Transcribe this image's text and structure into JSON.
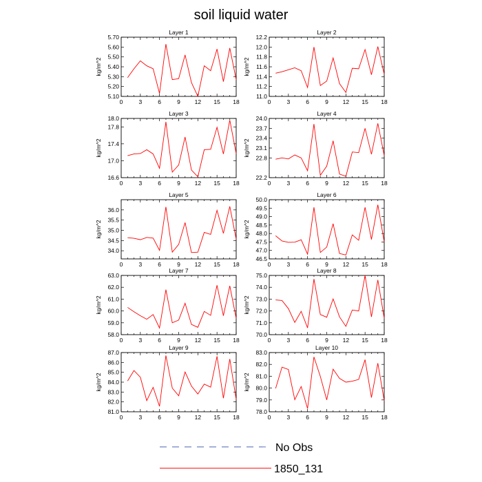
{
  "title": "soil liquid water",
  "colors": {
    "series": "#ff0000",
    "obs": "#4a5fb0"
  },
  "legend": [
    {
      "label": "No Obs",
      "style": "dashed",
      "color": "#4a5fb0"
    },
    {
      "label": "1850_131",
      "style": "solid",
      "color": "#ff0000"
    }
  ],
  "chart_data": [
    {
      "type": "line",
      "title": "Layer 1",
      "ylabel": "kg/m^2",
      "xlim": [
        0,
        18
      ],
      "xticks": [
        0,
        3,
        6,
        9,
        12,
        15,
        18
      ],
      "ylim": [
        5.1,
        5.7
      ],
      "yticks": [
        "5.10",
        "5.20",
        "5.30",
        "5.40",
        "5.50",
        "5.60",
        "5.70"
      ],
      "x": [
        1,
        2,
        3,
        4,
        5,
        6,
        7,
        8,
        9,
        10,
        11,
        12,
        13,
        14,
        15,
        16,
        17,
        18
      ],
      "series": [
        {
          "values": [
            5.29,
            5.38,
            5.46,
            5.41,
            5.38,
            5.13,
            5.63,
            5.27,
            5.28,
            5.52,
            5.24,
            5.1,
            5.41,
            5.36,
            5.58,
            5.25,
            5.59,
            5.27
          ]
        }
      ]
    },
    {
      "type": "line",
      "title": "Layer 2",
      "ylabel": "kg/m^2",
      "xlim": [
        0,
        18
      ],
      "xticks": [
        0,
        3,
        6,
        9,
        12,
        15,
        18
      ],
      "ylim": [
        11.0,
        12.2
      ],
      "yticks": [
        "11.0",
        "11.2",
        "11.4",
        "11.6",
        "11.8",
        "12.0",
        "12.2"
      ],
      "x": [
        1,
        2,
        3,
        4,
        5,
        6,
        7,
        8,
        9,
        10,
        11,
        12,
        13,
        14,
        15,
        16,
        17,
        18
      ],
      "series": [
        {
          "values": [
            11.47,
            11.5,
            11.54,
            11.58,
            11.52,
            11.18,
            12.0,
            11.22,
            11.31,
            11.78,
            11.26,
            11.08,
            11.57,
            11.56,
            11.95,
            11.44,
            12.01,
            11.45
          ]
        }
      ]
    },
    {
      "type": "line",
      "title": "Layer 3",
      "ylabel": "kg/m^2",
      "xlim": [
        0,
        18
      ],
      "xticks": [
        0,
        3,
        6,
        9,
        12,
        15,
        18
      ],
      "ylim": [
        16.6,
        18.0
      ],
      "yticks": [
        "16.6",
        "17.0",
        "17.4",
        "17.8",
        "18.0"
      ],
      "x": [
        1,
        2,
        3,
        4,
        5,
        6,
        7,
        8,
        9,
        10,
        11,
        12,
        13,
        14,
        15,
        16,
        17,
        18
      ],
      "series": [
        {
          "values": [
            17.12,
            17.16,
            17.17,
            17.26,
            17.16,
            16.82,
            17.92,
            16.73,
            16.9,
            17.56,
            16.78,
            16.62,
            17.26,
            17.27,
            17.79,
            17.16,
            17.96,
            17.17
          ]
        }
      ]
    },
    {
      "type": "line",
      "title": "Layer 4",
      "ylabel": "kg/m^2",
      "xlim": [
        0,
        18
      ],
      "xticks": [
        0,
        3,
        6,
        9,
        12,
        15,
        18
      ],
      "ylim": [
        22.2,
        24.0
      ],
      "yticks": [
        "22.2",
        "22.8",
        "23.1",
        "23.4",
        "23.7",
        "24.0"
      ],
      "x": [
        1,
        2,
        3,
        4,
        5,
        6,
        7,
        8,
        9,
        10,
        11,
        12,
        13,
        14,
        15,
        16,
        17,
        18
      ],
      "series": [
        {
          "values": [
            22.76,
            22.8,
            22.77,
            22.89,
            22.8,
            22.41,
            23.83,
            22.27,
            22.55,
            23.32,
            22.31,
            22.24,
            22.98,
            22.96,
            23.7,
            22.91,
            23.85,
            22.87
          ]
        }
      ]
    },
    {
      "type": "line",
      "title": "Layer 5",
      "ylabel": "kg/m^2",
      "xlim": [
        0,
        18
      ],
      "xticks": [
        0,
        3,
        6,
        9,
        12,
        15,
        18
      ],
      "ylim": [
        33.6,
        36.5
      ],
      "yticks": [
        "34.0",
        "34.5",
        "35.0",
        "35.5",
        "36.0"
      ],
      "x": [
        1,
        2,
        3,
        4,
        5,
        6,
        7,
        8,
        9,
        10,
        11,
        12,
        13,
        14,
        15,
        16,
        17,
        18
      ],
      "series": [
        {
          "values": [
            34.64,
            34.61,
            34.54,
            34.65,
            34.62,
            34.02,
            36.15,
            33.93,
            34.31,
            35.38,
            33.91,
            33.93,
            34.9,
            34.8,
            35.98,
            34.85,
            36.17,
            34.57
          ]
        }
      ]
    },
    {
      "type": "line",
      "title": "Layer 6",
      "ylabel": "kg/m^2",
      "xlim": [
        0,
        18
      ],
      "xticks": [
        0,
        3,
        6,
        9,
        12,
        15,
        18
      ],
      "ylim": [
        46.5,
        50.0
      ],
      "yticks": [
        "46.5",
        "47.0",
        "47.5",
        "48.0",
        "48.5",
        "49.0",
        "49.5",
        "50.0"
      ],
      "x": [
        1,
        2,
        3,
        4,
        5,
        6,
        7,
        8,
        9,
        10,
        11,
        12,
        13,
        14,
        15,
        16,
        17,
        18
      ],
      "series": [
        {
          "values": [
            47.87,
            47.56,
            47.48,
            47.49,
            47.63,
            46.78,
            49.55,
            46.88,
            47.2,
            48.58,
            46.82,
            46.73,
            47.92,
            47.6,
            49.55,
            47.65,
            49.7,
            47.5
          ]
        }
      ]
    },
    {
      "type": "line",
      "title": "Layer 7",
      "ylabel": "kg/m^2",
      "xlim": [
        0,
        18
      ],
      "xticks": [
        0,
        3,
        6,
        9,
        12,
        15,
        18
      ],
      "ylim": [
        58.0,
        63.0
      ],
      "yticks": [
        "58.0",
        "59.0",
        "60.0",
        "61.0",
        "62.0",
        "63.0"
      ],
      "x": [
        1,
        2,
        3,
        4,
        5,
        6,
        7,
        8,
        9,
        10,
        11,
        12,
        13,
        14,
        15,
        16,
        17,
        18
      ],
      "series": [
        {
          "values": [
            60.3,
            59.93,
            59.6,
            59.3,
            59.7,
            58.56,
            61.8,
            59.0,
            59.23,
            60.65,
            58.86,
            58.62,
            59.96,
            59.63,
            62.17,
            59.6,
            62.12,
            59.38
          ]
        }
      ]
    },
    {
      "type": "line",
      "title": "Layer 8",
      "ylabel": "kg/m^2",
      "xlim": [
        0,
        18
      ],
      "xticks": [
        0,
        3,
        6,
        9,
        12,
        15,
        18
      ],
      "ylim": [
        70.0,
        75.0
      ],
      "yticks": [
        "70.0",
        "71.0",
        "72.0",
        "73.0",
        "74.0",
        "75.0"
      ],
      "x": [
        1,
        2,
        3,
        4,
        5,
        6,
        7,
        8,
        9,
        10,
        11,
        12,
        13,
        14,
        15,
        16,
        17,
        18
      ],
      "series": [
        {
          "values": [
            72.93,
            72.88,
            72.2,
            71.03,
            71.97,
            70.57,
            74.7,
            71.7,
            71.47,
            73.02,
            71.5,
            70.7,
            72.08,
            72.0,
            75.0,
            71.5,
            74.62,
            71.38
          ]
        }
      ]
    },
    {
      "type": "line",
      "title": "Layer 9",
      "ylabel": "kg/m^2",
      "xlim": [
        0,
        18
      ],
      "xticks": [
        0,
        3,
        6,
        9,
        12,
        15,
        18
      ],
      "ylim": [
        81.0,
        87.0
      ],
      "yticks": [
        "81.0",
        "82.0",
        "83.0",
        "84.0",
        "85.0",
        "86.0",
        "87.0"
      ],
      "x": [
        1,
        2,
        3,
        4,
        5,
        6,
        7,
        8,
        9,
        10,
        11,
        12,
        13,
        14,
        15,
        16,
        17,
        18
      ],
      "series": [
        {
          "values": [
            84.12,
            85.18,
            84.5,
            82.13,
            83.47,
            81.55,
            86.7,
            83.4,
            82.62,
            85.03,
            83.6,
            82.8,
            83.8,
            83.5,
            86.62,
            82.37,
            86.35,
            82.25
          ]
        }
      ]
    },
    {
      "type": "line",
      "title": "Layer 10",
      "ylabel": "kg/m^2",
      "xlim": [
        0,
        18
      ],
      "xticks": [
        0,
        3,
        6,
        9,
        12,
        15,
        18
      ],
      "ylim": [
        78.0,
        83.0
      ],
      "yticks": [
        "78.0",
        "79.0",
        "80.0",
        "81.0",
        "82.0",
        "83.0"
      ],
      "x": [
        1,
        2,
        3,
        4,
        5,
        6,
        7,
        8,
        9,
        10,
        11,
        12,
        13,
        14,
        15,
        16,
        17,
        18
      ],
      "series": [
        {
          "values": [
            79.97,
            81.77,
            81.57,
            79.02,
            80.13,
            78.27,
            82.63,
            80.98,
            79.0,
            81.6,
            80.82,
            80.5,
            80.58,
            80.73,
            82.4,
            79.2,
            82.1,
            78.93
          ]
        }
      ]
    }
  ]
}
